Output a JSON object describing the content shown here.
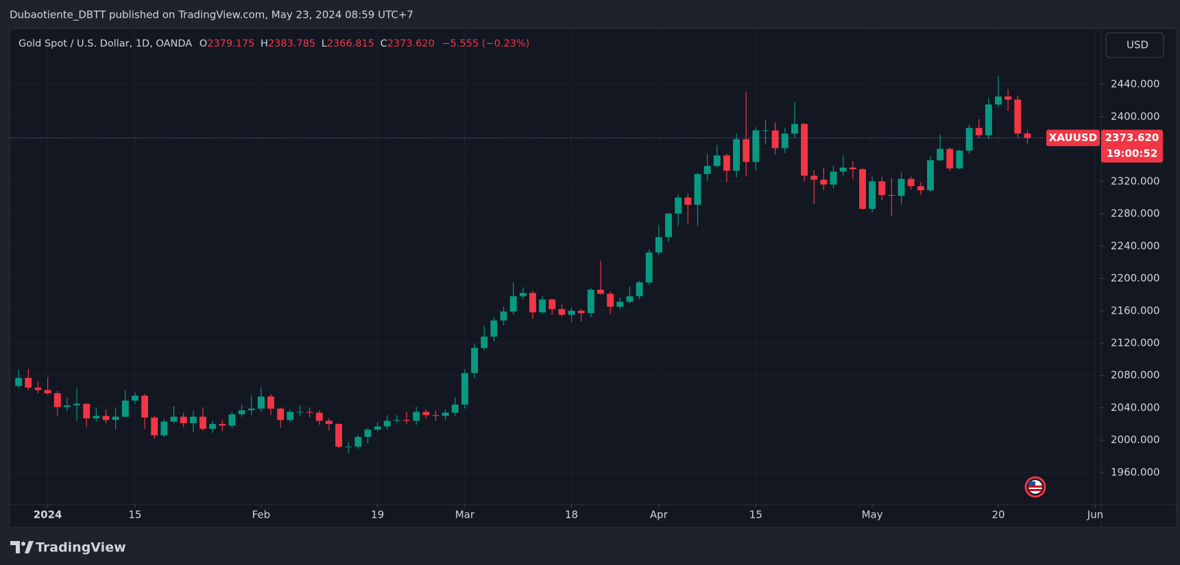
{
  "header": "Dubaotiente_DBTT published on TradingView.com, May 23, 2024 08:59 UTC+7",
  "footer": "TradingView",
  "currency_button": "USD",
  "chart_data": {
    "type": "candlestick",
    "symbol_title": "Gold Spot / U.S. Dollar, 1D, OANDA",
    "ohlc_labels": [
      "O",
      "H",
      "L",
      "C"
    ],
    "change_label": "−5.555 (−0.23%)",
    "last_label": "2373.620",
    "symbol_tag": "XAUUSD",
    "countdown": "19:00:52",
    "up_color": "#089981",
    "down_color": "#f23645",
    "grid": true,
    "xlim": [
      -0.93,
      111.6
    ],
    "xticks": [
      {
        "value": 3,
        "label": "2024"
      },
      {
        "value": 12,
        "label": "15"
      },
      {
        "value": 25,
        "label": "Feb"
      },
      {
        "value": 37,
        "label": "19"
      },
      {
        "value": 46,
        "label": "Mar"
      },
      {
        "value": 57,
        "label": "18"
      },
      {
        "value": 66,
        "label": "Apr"
      },
      {
        "value": 76,
        "label": "15"
      },
      {
        "value": 88,
        "label": "May"
      },
      {
        "value": 101,
        "label": "20"
      },
      {
        "value": 111,
        "label": "Jun"
      }
    ],
    "ylim": [
      1920.2,
      2508.6
    ],
    "yticks": [
      {
        "value": 1960,
        "label": "1960.000"
      },
      {
        "value": 2000,
        "label": "2000.000"
      },
      {
        "value": 2040,
        "label": "2040.000"
      },
      {
        "value": 2080,
        "label": "2080.000"
      },
      {
        "value": 2120,
        "label": "2120.000"
      },
      {
        "value": 2160,
        "label": "2160.000"
      },
      {
        "value": 2200,
        "label": "2200.000"
      },
      {
        "value": 2240,
        "label": "2240.000"
      },
      {
        "value": 2280,
        "label": "2280.000"
      },
      {
        "value": 2320,
        "label": "2320.000"
      },
      {
        "value": 2360,
        "label": "2360.000"
      },
      {
        "value": 2400,
        "label": "2400.000"
      },
      {
        "value": 2440,
        "label": "2440.000"
      }
    ],
    "open": [
      2067,
      2077,
      2065,
      2062,
      2058,
      2041,
      2043,
      2045,
      2027,
      2030,
      2025,
      2029,
      2049,
      2055,
      2028,
      2006,
      2023,
      2029,
      2021,
      2029,
      2014,
      2020,
      2018,
      2032,
      2037,
      2039,
      2054,
      2039,
      2025,
      2035,
      2035,
      2034,
      2024,
      2020,
      1992,
      1992,
      2004,
      2013,
      2017,
      2024,
      2025,
      2024,
      2035,
      2031,
      2030,
      2034,
      2044,
      2083,
      2114,
      2128,
      2148,
      2159,
      2178,
      2182,
      2158,
      2174,
      2162,
      2155,
      2160,
      2157,
      2186,
      2181,
      2165,
      2171,
      2178,
      2195,
      2232,
      2251,
      2280,
      2300,
      2291,
      2329,
      2339,
      2352,
      2333,
      2372,
      2344,
      2383,
      2383,
      2361,
      2379,
      2391,
      2327,
      2322,
      2316,
      2332,
      2337,
      2335,
      2286,
      2320,
      2303,
      2302,
      2323,
      2314,
      2309,
      2346,
      2360,
      2336,
      2358,
      2386,
      2377,
      2415,
      2425,
      2421,
      2379.175
    ],
    "high": [
      2088,
      2088,
      2073,
      2078,
      2061,
      2053,
      2064,
      2046,
      2040,
      2038,
      2040,
      2062,
      2059,
      2057,
      2030,
      2026,
      2042,
      2034,
      2036,
      2040,
      2024,
      2025,
      2035,
      2044,
      2055,
      2065,
      2057,
      2040,
      2038,
      2043,
      2040,
      2037,
      2027,
      2021,
      1998,
      2007,
      2015,
      2022,
      2031,
      2031,
      2035,
      2041,
      2038,
      2037,
      2038,
      2053,
      2088,
      2119,
      2141,
      2152,
      2165,
      2195,
      2189,
      2185,
      2178,
      2175,
      2168,
      2164,
      2162,
      2188,
      2222,
      2184,
      2176,
      2190,
      2197,
      2236,
      2266,
      2281,
      2304,
      2305,
      2331,
      2354,
      2365,
      2354,
      2379,
      2431,
      2387,
      2396,
      2393,
      2386,
      2418,
      2392,
      2334,
      2337,
      2339,
      2352,
      2345,
      2336,
      2326,
      2326,
      2324,
      2331,
      2326,
      2319,
      2351,
      2378,
      2362,
      2359,
      2390,
      2397,
      2423,
      2450,
      2434,
      2426,
      2383.785
    ],
    "low": [
      2064,
      2062,
      2058,
      2056,
      2030,
      2036,
      2024,
      2016,
      2023,
      2021,
      2013,
      2028,
      2045,
      2014,
      2002,
      2004,
      2021,
      2016,
      2010,
      2012,
      2009,
      2011,
      2015,
      2029,
      2031,
      2035,
      2031,
      2015,
      2022,
      2030,
      2028,
      2019,
      2012,
      1990,
      1984,
      1989,
      1996,
      2011,
      2013,
      2021,
      2020,
      2019,
      2026,
      2024,
      2025,
      2030,
      2039,
      2077,
      2111,
      2122,
      2142,
      2155,
      2174,
      2150,
      2156,
      2155,
      2153,
      2146,
      2147,
      2152,
      2180,
      2156,
      2162,
      2169,
      2174,
      2192,
      2229,
      2245,
      2265,
      2268,
      2265,
      2321,
      2337,
      2319,
      2325,
      2326,
      2333,
      2366,
      2353,
      2355,
      2374,
      2320,
      2292,
      2309,
      2311,
      2327,
      2323,
      2285,
      2282,
      2297,
      2277,
      2291,
      2310,
      2303,
      2307,
      2345,
      2333,
      2335,
      2354,
      2373,
      2372,
      2412,
      2407,
      2374,
      2366.815
    ],
    "close": [
      2077,
      2065,
      2062,
      2058,
      2041,
      2043,
      2045,
      2027,
      2030,
      2025,
      2029,
      2049,
      2055,
      2028,
      2006,
      2023,
      2029,
      2021,
      2029,
      2014,
      2020,
      2018,
      2032,
      2037,
      2039,
      2054,
      2039,
      2025,
      2035,
      2035,
      2034,
      2024,
      2020,
      1992,
      1992,
      2004,
      2013,
      2017,
      2024,
      2025,
      2024,
      2035,
      2031,
      2030,
      2034,
      2044,
      2083,
      2114,
      2128,
      2148,
      2159,
      2178,
      2182,
      2158,
      2174,
      2162,
      2155,
      2160,
      2157,
      2186,
      2181,
      2165,
      2171,
      2178,
      2195,
      2232,
      2251,
      2280,
      2300,
      2291,
      2329,
      2339,
      2352,
      2333,
      2372,
      2344,
      2383,
      2383,
      2361,
      2379,
      2391,
      2327,
      2322,
      2316,
      2332,
      2337,
      2335,
      2286,
      2320,
      2303,
      2302,
      2323,
      2314,
      2309,
      2346,
      2360,
      2336,
      2358,
      2386,
      2377,
      2415,
      2425,
      2421,
      2379,
      2373.62
    ]
  }
}
